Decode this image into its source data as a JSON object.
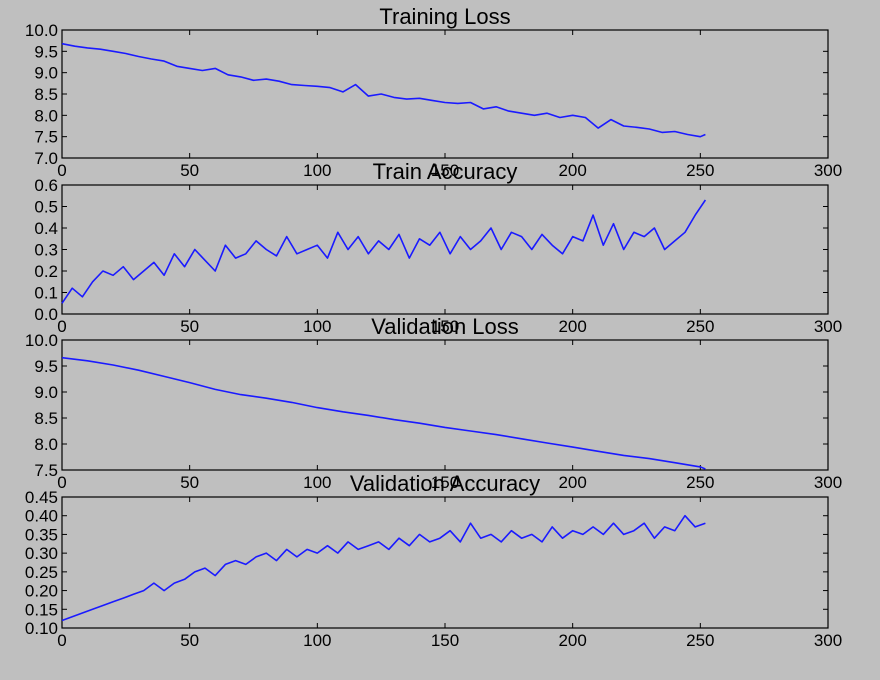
{
  "chart_data": [
    {
      "type": "line",
      "title": "Training Loss",
      "xlim": [
        0,
        300
      ],
      "ylim": [
        7.0,
        10.0
      ],
      "xticks": [
        "0",
        "50",
        "100",
        "150",
        "200",
        "250",
        "300"
      ],
      "yticks": [
        "7.0",
        "7.5",
        "8.0",
        "8.5",
        "9.0",
        "9.5",
        "10.0"
      ],
      "grid": false,
      "color": "#1a1aff",
      "series": [
        {
          "x": [
            0,
            5,
            10,
            15,
            20,
            25,
            30,
            35,
            40,
            45,
            50,
            55,
            60,
            65,
            70,
            75,
            80,
            85,
            90,
            95,
            100,
            105,
            110,
            115,
            120,
            125,
            130,
            135,
            140,
            145,
            150,
            155,
            160,
            165,
            170,
            175,
            180,
            185,
            190,
            195,
            200,
            205,
            210,
            215,
            220,
            225,
            230,
            235,
            240,
            245,
            250,
            252
          ],
          "values": [
            9.68,
            9.62,
            9.58,
            9.55,
            9.5,
            9.45,
            9.38,
            9.32,
            9.27,
            9.15,
            9.1,
            9.05,
            9.1,
            8.95,
            8.9,
            8.82,
            8.85,
            8.8,
            8.72,
            8.7,
            8.68,
            8.65,
            8.55,
            8.72,
            8.45,
            8.5,
            8.42,
            8.38,
            8.4,
            8.35,
            8.3,
            8.28,
            8.3,
            8.15,
            8.2,
            8.1,
            8.05,
            8.0,
            8.05,
            7.95,
            8.0,
            7.95,
            7.7,
            7.9,
            7.75,
            7.72,
            7.68,
            7.6,
            7.62,
            7.55,
            7.5,
            7.55
          ]
        }
      ]
    },
    {
      "type": "line",
      "title": "Train Accuracy",
      "xlim": [
        0,
        300
      ],
      "ylim": [
        0.0,
        0.6
      ],
      "xticks": [
        "0",
        "50",
        "100",
        "150",
        "200",
        "250",
        "300"
      ],
      "yticks": [
        "0.0",
        "0.1",
        "0.2",
        "0.3",
        "0.4",
        "0.5",
        "0.6"
      ],
      "grid": false,
      "color": "#1a1aff",
      "series": [
        {
          "x": [
            0,
            4,
            8,
            12,
            16,
            20,
            24,
            28,
            32,
            36,
            40,
            44,
            48,
            52,
            56,
            60,
            64,
            68,
            72,
            76,
            80,
            84,
            88,
            92,
            96,
            100,
            104,
            108,
            112,
            116,
            120,
            124,
            128,
            132,
            136,
            140,
            144,
            148,
            152,
            156,
            160,
            164,
            168,
            172,
            176,
            180,
            184,
            188,
            192,
            196,
            200,
            204,
            208,
            212,
            216,
            220,
            224,
            228,
            232,
            236,
            240,
            244,
            248,
            252
          ],
          "values": [
            0.05,
            0.12,
            0.08,
            0.15,
            0.2,
            0.18,
            0.22,
            0.16,
            0.2,
            0.24,
            0.18,
            0.28,
            0.22,
            0.3,
            0.25,
            0.2,
            0.32,
            0.26,
            0.28,
            0.34,
            0.3,
            0.27,
            0.36,
            0.28,
            0.3,
            0.32,
            0.26,
            0.38,
            0.3,
            0.36,
            0.28,
            0.34,
            0.3,
            0.37,
            0.26,
            0.35,
            0.32,
            0.38,
            0.28,
            0.36,
            0.3,
            0.34,
            0.4,
            0.3,
            0.38,
            0.36,
            0.3,
            0.37,
            0.32,
            0.28,
            0.36,
            0.34,
            0.46,
            0.32,
            0.42,
            0.3,
            0.38,
            0.36,
            0.4,
            0.3,
            0.34,
            0.38,
            0.46,
            0.53
          ]
        }
      ]
    },
    {
      "type": "line",
      "title": "Validation Loss",
      "xlim": [
        0,
        300
      ],
      "ylim": [
        7.5,
        10.0
      ],
      "xticks": [
        "0",
        "50",
        "100",
        "150",
        "200",
        "250",
        "300"
      ],
      "yticks": [
        "7.5",
        "8.0",
        "8.5",
        "9.0",
        "9.5",
        "10.0"
      ],
      "grid": false,
      "color": "#1a1aff",
      "series": [
        {
          "x": [
            0,
            10,
            20,
            30,
            40,
            50,
            60,
            70,
            80,
            90,
            100,
            110,
            120,
            130,
            140,
            150,
            160,
            170,
            180,
            190,
            200,
            210,
            220,
            230,
            240,
            250,
            252
          ],
          "values": [
            9.66,
            9.6,
            9.52,
            9.42,
            9.3,
            9.18,
            9.05,
            8.95,
            8.88,
            8.8,
            8.7,
            8.62,
            8.55,
            8.47,
            8.4,
            8.32,
            8.25,
            8.18,
            8.1,
            8.02,
            7.94,
            7.86,
            7.78,
            7.72,
            7.64,
            7.56,
            7.52
          ]
        }
      ]
    },
    {
      "type": "line",
      "title": "Validation Accuracy",
      "xlim": [
        0,
        300
      ],
      "ylim": [
        0.1,
        0.45
      ],
      "xticks": [
        "0",
        "50",
        "100",
        "150",
        "200",
        "250",
        "300"
      ],
      "yticks": [
        "0.10",
        "0.15",
        "0.20",
        "0.25",
        "0.30",
        "0.35",
        "0.40",
        "0.45"
      ],
      "grid": false,
      "color": "#1a1aff",
      "series": [
        {
          "x": [
            0,
            4,
            8,
            12,
            16,
            20,
            24,
            28,
            32,
            36,
            40,
            44,
            48,
            52,
            56,
            60,
            64,
            68,
            72,
            76,
            80,
            84,
            88,
            92,
            96,
            100,
            104,
            108,
            112,
            116,
            120,
            124,
            128,
            132,
            136,
            140,
            144,
            148,
            152,
            156,
            160,
            164,
            168,
            172,
            176,
            180,
            184,
            188,
            192,
            196,
            200,
            204,
            208,
            212,
            216,
            220,
            224,
            228,
            232,
            236,
            240,
            244,
            248,
            252
          ],
          "values": [
            0.12,
            0.13,
            0.14,
            0.15,
            0.16,
            0.17,
            0.18,
            0.19,
            0.2,
            0.22,
            0.2,
            0.22,
            0.23,
            0.25,
            0.26,
            0.24,
            0.27,
            0.28,
            0.27,
            0.29,
            0.3,
            0.28,
            0.31,
            0.29,
            0.31,
            0.3,
            0.32,
            0.3,
            0.33,
            0.31,
            0.32,
            0.33,
            0.31,
            0.34,
            0.32,
            0.35,
            0.33,
            0.34,
            0.36,
            0.33,
            0.38,
            0.34,
            0.35,
            0.33,
            0.36,
            0.34,
            0.35,
            0.33,
            0.37,
            0.34,
            0.36,
            0.35,
            0.37,
            0.35,
            0.38,
            0.35,
            0.36,
            0.38,
            0.34,
            0.37,
            0.36,
            0.4,
            0.37,
            0.38
          ]
        }
      ]
    }
  ]
}
